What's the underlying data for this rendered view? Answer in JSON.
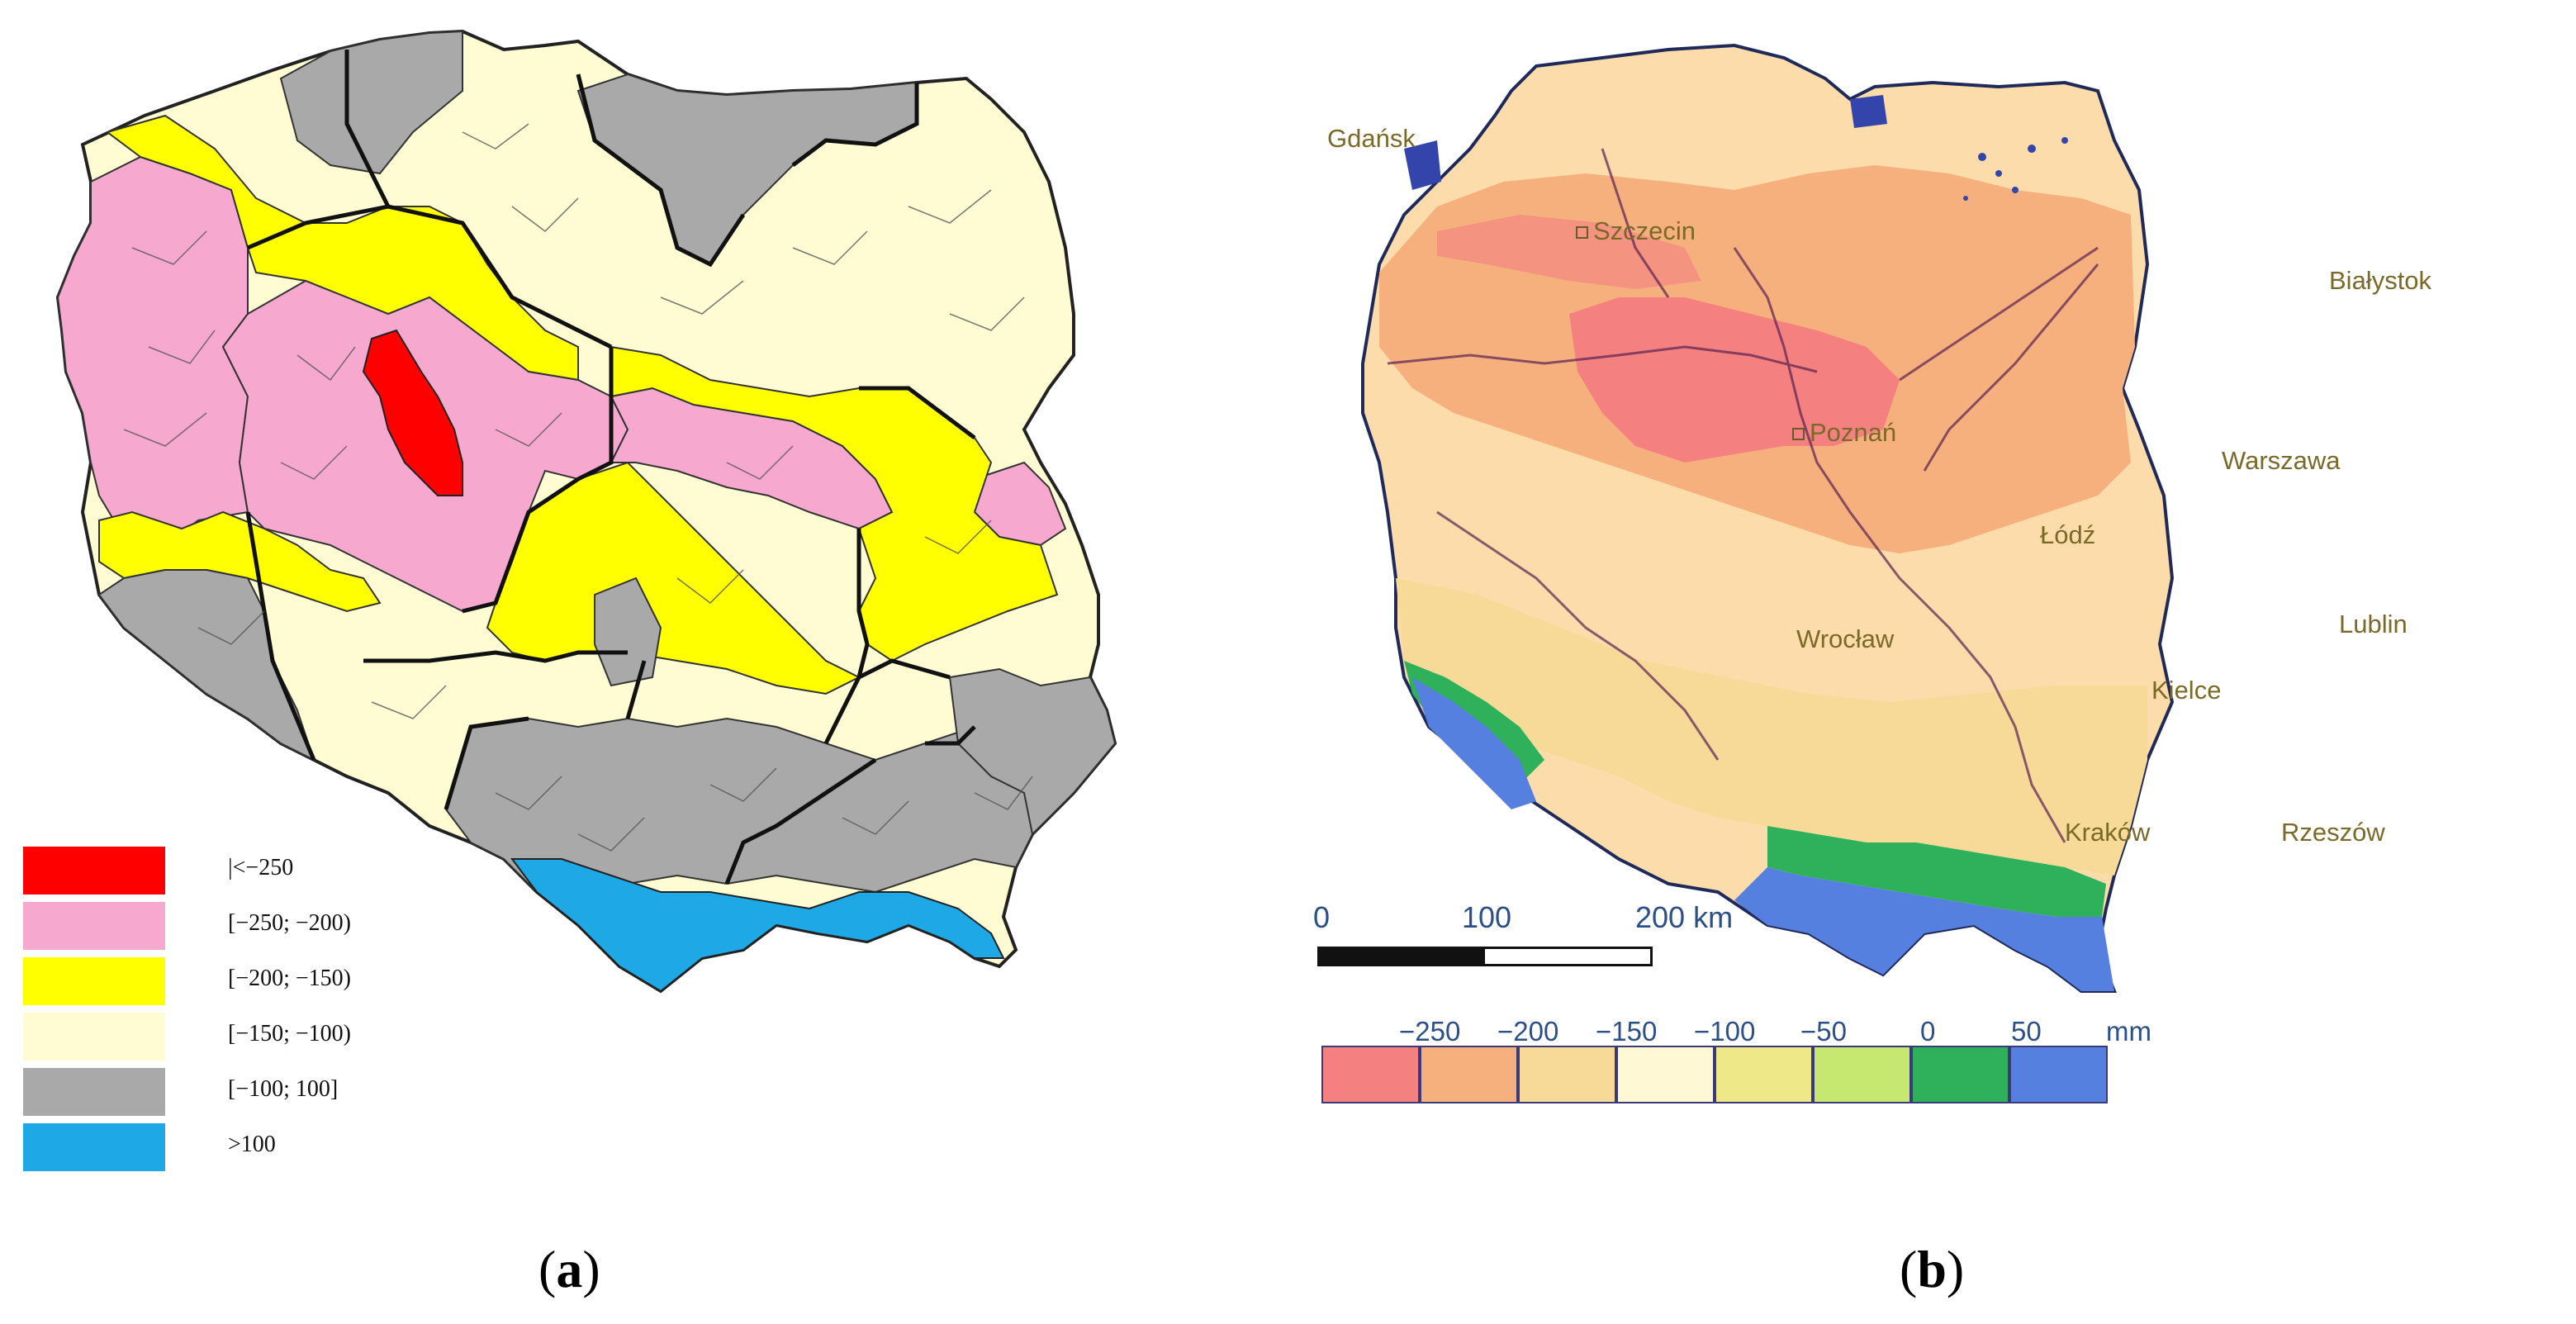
{
  "panel_a": {
    "caption": "a",
    "legend": [
      {
        "label": "|<−250",
        "color": "#ff0000"
      },
      {
        "label": "[−250; −200)",
        "color": "#f7a8cf"
      },
      {
        "label": "[−200; −150)",
        "color": "#ffff00"
      },
      {
        "label": "[−150; −100)",
        "color": "#fffcd4"
      },
      {
        "label": "[−100; 100]",
        "color": "#a9a9a9"
      },
      {
        "label": ">100",
        "color": "#1ea8e6"
      }
    ]
  },
  "panel_b": {
    "caption": "b",
    "cities": [
      {
        "name": "Gdańsk"
      },
      {
        "name": "Szczecin"
      },
      {
        "name": "Białystok"
      },
      {
        "name": "Poznań"
      },
      {
        "name": "Warszawa"
      },
      {
        "name": "Łódź"
      },
      {
        "name": "Wrocław"
      },
      {
        "name": "Lublin"
      },
      {
        "name": "Kielce"
      },
      {
        "name": "Kraków"
      },
      {
        "name": "Rzeszów"
      }
    ],
    "scale_bar": {
      "labels": [
        "0",
        "100",
        "200 km"
      ]
    },
    "colorbar": {
      "ticks": [
        "−250",
        "−200",
        "−150",
        "−100",
        "−50",
        "0",
        "50",
        "mm"
      ],
      "colors": [
        "#f48080",
        "#f6b07e",
        "#f8da98",
        "#fff8d4",
        "#eee888",
        "#c6e870",
        "#2fb05a",
        "#5580e0"
      ]
    }
  }
}
